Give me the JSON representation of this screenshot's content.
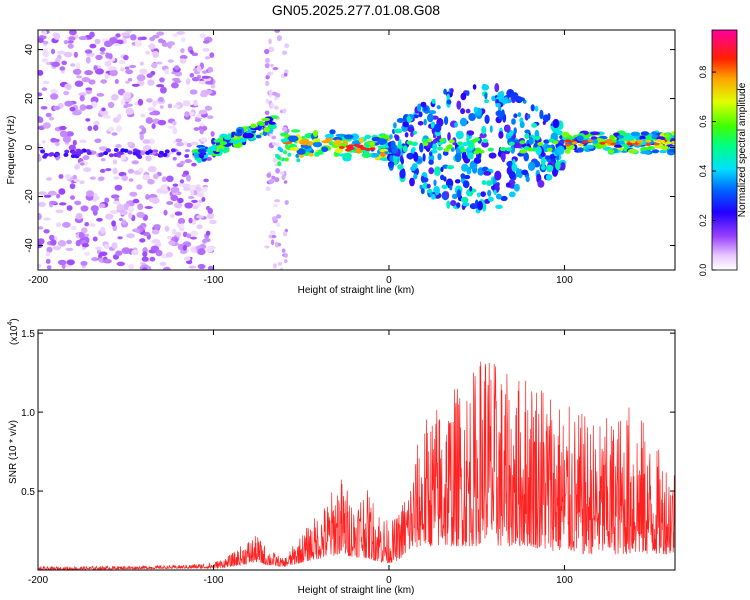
{
  "title": "GN05.2025.277.01.08.G08",
  "colors": {
    "snr_line": "#ff2020",
    "background": "#ffffff",
    "axis": "#000000"
  },
  "chart_data": [
    {
      "type": "heatmap",
      "title": "GN05.2025.277.01.08.G08",
      "xlabel": "Height of straight line (km)",
      "ylabel": "Frequency (Hz)",
      "xlim": [
        -200,
        163
      ],
      "ylim": [
        -50,
        48
      ],
      "x_ticks": [
        -200,
        -100,
        0,
        100
      ],
      "y_ticks": [
        -40,
        -20,
        0,
        20,
        40
      ],
      "x_tick_labels": [
        "-200",
        "-100",
        "0",
        "100"
      ],
      "y_tick_labels": [
        "-40",
        "-20",
        "0",
        "20",
        "40"
      ],
      "colorbar": {
        "label": "Normalized spectral amplitude",
        "range": [
          0,
          0.97
        ],
        "ticks": [
          0,
          0.2,
          0.4,
          0.6,
          0.8
        ],
        "tick_labels": [
          "0.0",
          "0.2",
          "0.4",
          "0.6",
          "0.8"
        ],
        "colormap": "rainbow (white-violet-blue-cyan-green-yellow-red-magenta)"
      },
      "features": [
        {
          "description": "scattered noise blobs",
          "x_range": [
            -200,
            -100
          ],
          "freq_range": [
            -50,
            48
          ],
          "amplitude": 0.1
        },
        {
          "description": "rising trace",
          "x_range": [
            -110,
            -65
          ],
          "freq_from": -3,
          "freq_to": 10,
          "amplitude": 0.5
        },
        {
          "description": "noise column",
          "x_range": [
            -70,
            -58
          ],
          "freq_range": [
            -50,
            48
          ],
          "amplitude": 0.08
        },
        {
          "description": "main trace",
          "x_range": [
            -60,
            0
          ],
          "freq_center": 2,
          "amplitude": 0.6
        },
        {
          "description": "spread region",
          "x_range": [
            0,
            100
          ],
          "freq_range": [
            -22,
            28
          ],
          "amplitude": 0.35
        },
        {
          "description": "strong trace",
          "x_range": [
            100,
            163
          ],
          "freq_center": 2,
          "amplitude": 0.9
        }
      ]
    },
    {
      "type": "line",
      "xlabel": "Height of straight line (km)",
      "ylabel": "SNR (10 * v/v)",
      "y_scale_label": "(x10",
      "y_scale_exponent": "4",
      "y_scale_suffix": ")",
      "xlim": [
        -200,
        163
      ],
      "ylim": [
        0,
        1.52
      ],
      "x_ticks": [
        -200,
        -100,
        0,
        100
      ],
      "y_ticks": [
        0.5,
        1.0,
        1.5
      ],
      "x_tick_labels": [
        "-200",
        "-100",
        "0",
        "100"
      ],
      "y_tick_labels": [
        "0.5",
        "1.0",
        "1.5"
      ],
      "series": [
        {
          "name": "SNR",
          "color": "#ff2020",
          "envelope_x": [
            -200,
            -120,
            -100,
            -90,
            -80,
            -75,
            -70,
            -60,
            -55,
            -45,
            -35,
            -28,
            -20,
            -15,
            -5,
            0,
            5,
            12,
            18,
            22,
            30,
            40,
            50,
            55,
            60,
            70,
            80,
            90,
            100,
            110,
            120,
            130,
            140,
            150,
            163
          ],
          "envelope_max": [
            0.02,
            0.03,
            0.05,
            0.1,
            0.2,
            0.22,
            0.15,
            0.07,
            0.15,
            0.3,
            0.45,
            0.62,
            0.45,
            0.55,
            0.4,
            0.3,
            0.35,
            0.6,
            0.9,
            1.0,
            1.1,
            1.2,
            1.3,
            1.52,
            1.35,
            1.2,
            1.3,
            1.25,
            1.05,
            1.0,
            0.95,
            1.0,
            1.1,
            0.8,
            0.7
          ],
          "envelope_min": [
            0.0,
            0.01,
            0.01,
            0.02,
            0.04,
            0.05,
            0.03,
            0.02,
            0.03,
            0.06,
            0.08,
            0.1,
            0.08,
            0.08,
            0.05,
            0.04,
            0.06,
            0.12,
            0.15,
            0.15,
            0.15,
            0.15,
            0.15,
            0.2,
            0.15,
            0.15,
            0.15,
            0.12,
            0.12,
            0.1,
            0.1,
            0.1,
            0.1,
            0.1,
            0.1
          ]
        }
      ]
    }
  ]
}
